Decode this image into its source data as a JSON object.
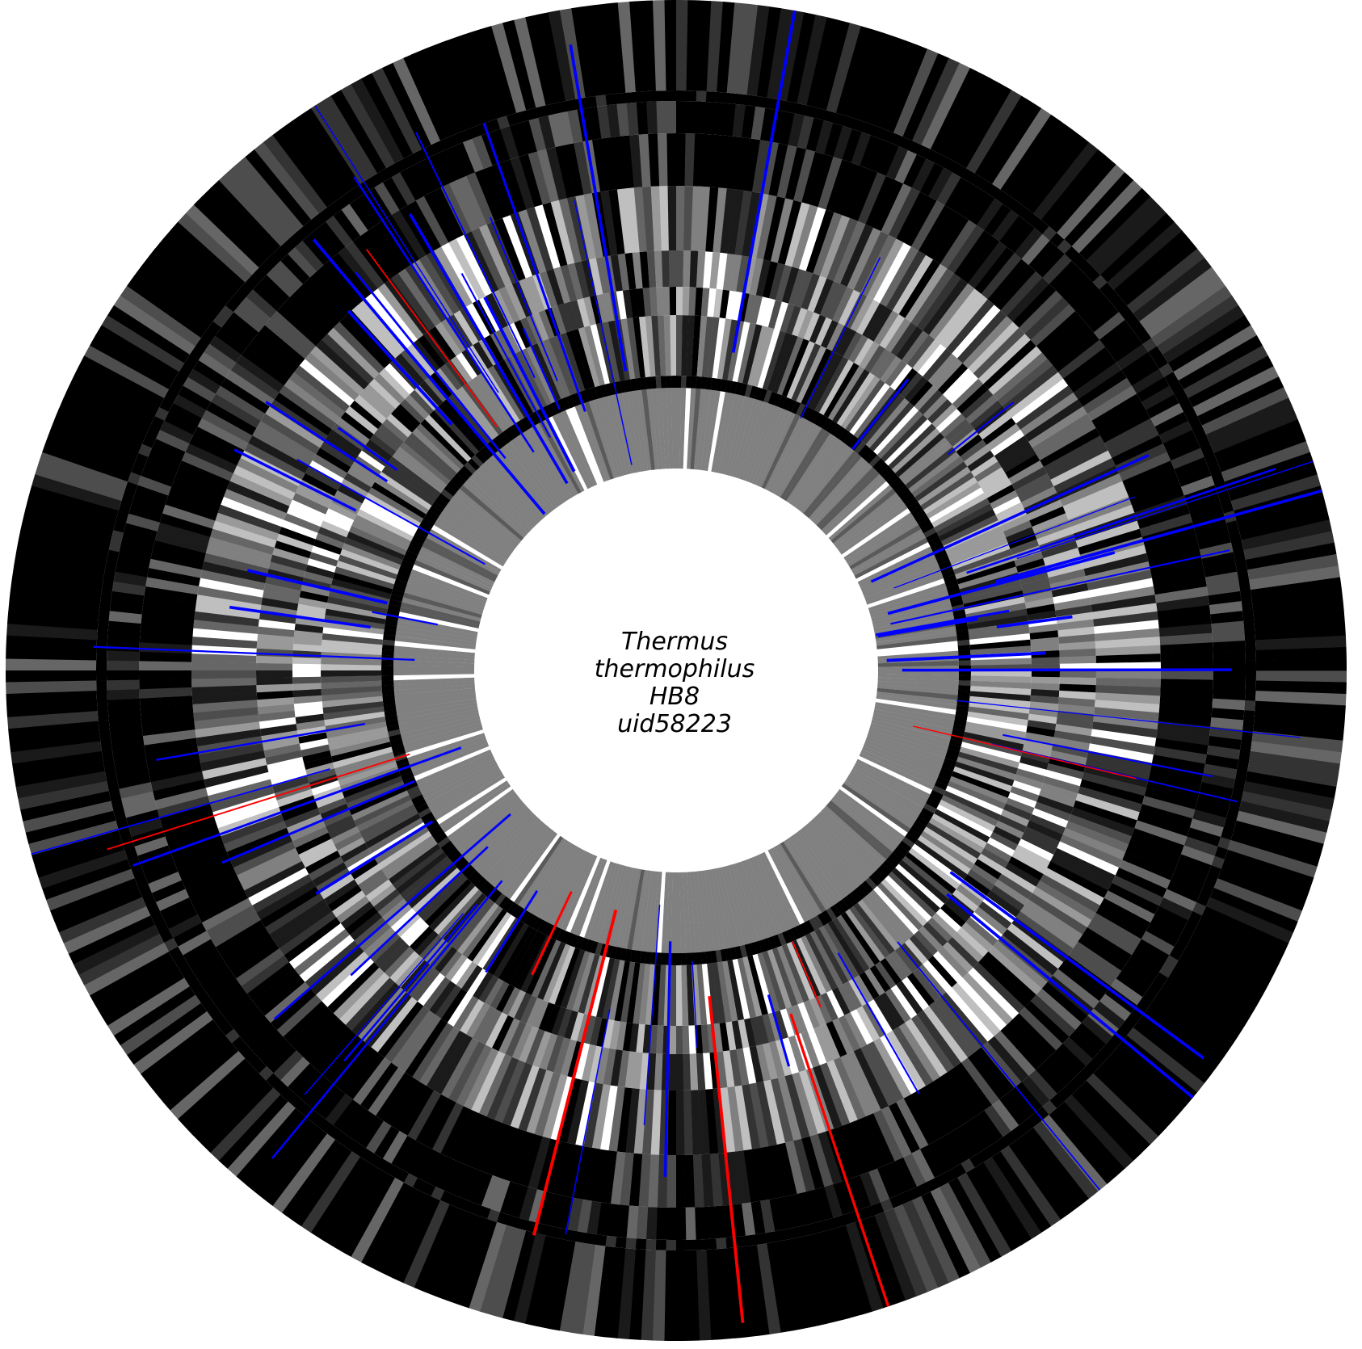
{
  "genome": {
    "name_lines": [
      "Thermus",
      "thermophilus",
      "HB8",
      "uid58223"
    ]
  },
  "colors": {
    "background": "#ffffff",
    "heavy": "#000000",
    "mid": "#808080",
    "light": "#ffffff",
    "highlight_blue": "#0000ff",
    "highlight_red": "#ff0000"
  }
}
